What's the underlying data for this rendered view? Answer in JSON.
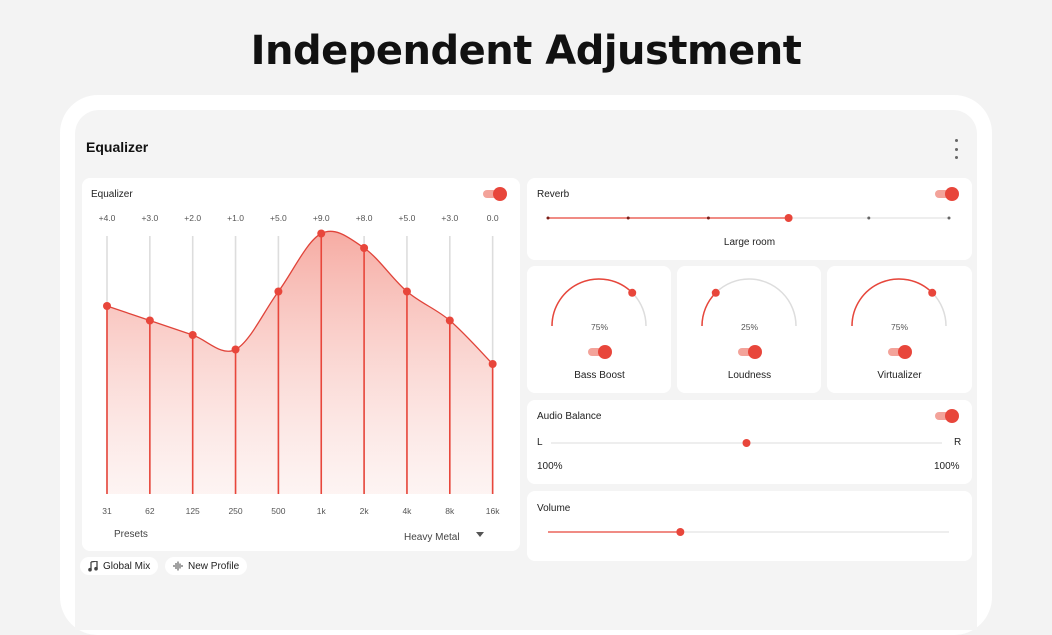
{
  "headline": "Independent Adjustment",
  "app": {
    "title": "Equalizer"
  },
  "equalizer": {
    "label": "Equalizer",
    "enabled": true,
    "bands": [
      {
        "freq": "31",
        "gain": "+4.0",
        "level": 4.0
      },
      {
        "freq": "62",
        "gain": "+3.0",
        "level": 3.0
      },
      {
        "freq": "125",
        "gain": "+2.0",
        "level": 2.0
      },
      {
        "freq": "250",
        "gain": "+1.0",
        "level": 1.0
      },
      {
        "freq": "500",
        "gain": "+5.0",
        "level": 5.0
      },
      {
        "freq": "1k",
        "gain": "+9.0",
        "level": 9.0
      },
      {
        "freq": "2k",
        "gain": "+8.0",
        "level": 8.0
      },
      {
        "freq": "4k",
        "gain": "+5.0",
        "level": 5.0
      },
      {
        "freq": "8k",
        "gain": "+3.0",
        "level": 3.0
      },
      {
        "freq": "16k",
        "gain": "0.0",
        "level": 0.0
      }
    ],
    "presets_label": "Presets",
    "preset_value": "Heavy Metal"
  },
  "reverb": {
    "label": "Reverb",
    "enabled": true,
    "value": "Large room",
    "steps": 6,
    "selected_step": 3
  },
  "effects": [
    {
      "name": "Bass Boost",
      "percent": "75%",
      "level": 0.75,
      "enabled": true
    },
    {
      "name": "Loudness",
      "percent": "25%",
      "level": 0.25,
      "enabled": true
    },
    {
      "name": "Virtualizer",
      "percent": "75%",
      "level": 0.75,
      "enabled": true
    }
  ],
  "balance": {
    "label": "Audio Balance",
    "enabled": true,
    "left_label": "L",
    "right_label": "R",
    "left_value": "100%",
    "right_value": "100%",
    "position": 0.5
  },
  "volume": {
    "label": "Volume",
    "level": 0.33
  },
  "chips": [
    {
      "label": "Global Mix",
      "icon": "music-note-icon"
    },
    {
      "label": "New Profile",
      "icon": "waveform-icon"
    }
  ],
  "colors": {
    "accent": "#e8463b",
    "accent_light": "#f3a39a",
    "track": "#dddddd"
  }
}
